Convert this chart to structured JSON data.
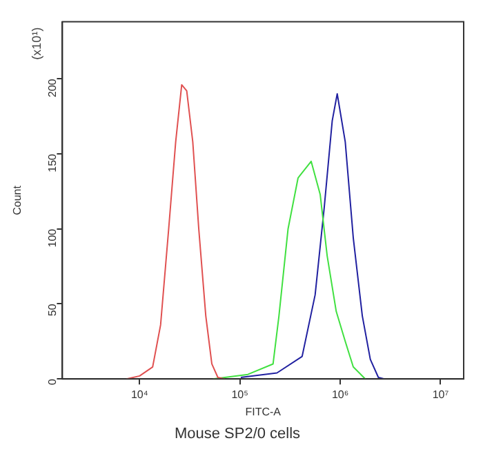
{
  "chart_data": {
    "type": "line",
    "title": "Mouse SP2/0 cells",
    "xlabel": "FITC-A",
    "ylabel": "Count",
    "annotations": [
      "(x10¹)"
    ],
    "log": "x",
    "grid": false,
    "legend": false,
    "marker": "none",
    "line_style": "solid",
    "xlim": [
      1700,
      17000000
    ],
    "xticks": [
      {
        "value": 10000,
        "label": "10⁴"
      },
      {
        "value": 100000,
        "label": "10⁵"
      },
      {
        "value": 1000000,
        "label": "10⁶"
      },
      {
        "value": 10000000,
        "label": "10⁷"
      }
    ],
    "ylim": [
      0,
      238
    ],
    "yticks": [
      0,
      50,
      100,
      150,
      200
    ],
    "series": [
      {
        "color": "#e05050",
        "x": [
          7400,
          10000,
          13500,
          16200,
          19500,
          22900,
          26300,
          29500,
          33900,
          38900,
          45700,
          52500,
          60300,
          70800
        ],
        "values": [
          0,
          2,
          8,
          36,
          100,
          158,
          196,
          192,
          158,
          100,
          42,
          10,
          1,
          0
        ]
      },
      {
        "color": "#40e040",
        "x": [
          53700,
          120000,
          214000,
          245000,
          302000,
          380000,
          513000,
          631000,
          741000,
          912000,
          1122000,
          1349000,
          1778000
        ],
        "values": [
          0,
          3,
          10,
          42,
          100,
          134,
          145,
          123,
          82,
          45,
          25,
          8,
          0
        ]
      },
      {
        "color": "#2020a0",
        "x": [
          102000,
          234000,
          417000,
          562000,
          692000,
          832000,
          933000,
          1122000,
          1349000,
          1660000,
          1995000,
          2399000,
          2754000
        ],
        "values": [
          1,
          4,
          15,
          56,
          114,
          172,
          190,
          158,
          94,
          42,
          13,
          1,
          0
        ]
      }
    ]
  }
}
